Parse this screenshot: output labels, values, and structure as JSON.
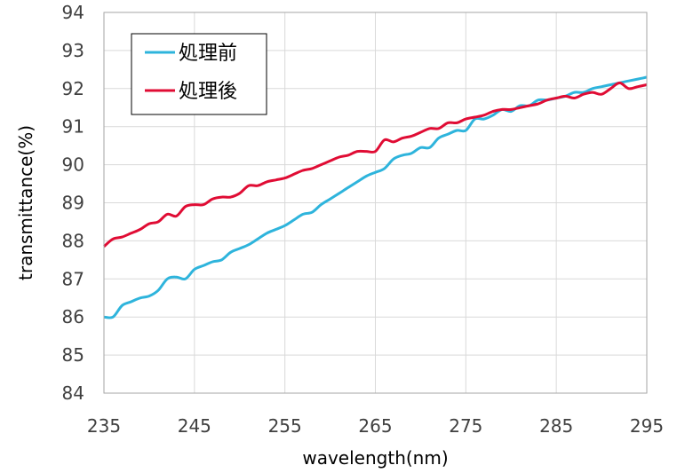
{
  "chart_data": {
    "type": "line",
    "xlabel": "wavelength(nm)",
    "ylabel": "transmittance(%)",
    "xlim": [
      235,
      295
    ],
    "ylim": [
      84,
      94
    ],
    "xticks": [
      235,
      245,
      255,
      265,
      275,
      285,
      295
    ],
    "yticks": [
      84,
      85,
      86,
      87,
      88,
      89,
      90,
      91,
      92,
      93,
      94
    ],
    "grid": true,
    "legend_position": "top-left",
    "series": [
      {
        "name": "処理前",
        "color": "#2EB4DC",
        "x": [
          235,
          236,
          237,
          238,
          239,
          240,
          241,
          242,
          243,
          244,
          245,
          246,
          247,
          248,
          249,
          250,
          251,
          252,
          253,
          254,
          255,
          256,
          257,
          258,
          259,
          260,
          261,
          262,
          263,
          264,
          265,
          266,
          267,
          268,
          269,
          270,
          271,
          272,
          273,
          274,
          275,
          276,
          277,
          278,
          279,
          280,
          281,
          282,
          283,
          284,
          285,
          286,
          287,
          288,
          289,
          290,
          291,
          292,
          293,
          294,
          295
        ],
        "values": [
          86.0,
          86.0,
          86.3,
          86.4,
          86.5,
          86.55,
          86.7,
          87.0,
          87.05,
          87.0,
          87.25,
          87.35,
          87.45,
          87.5,
          87.7,
          87.8,
          87.9,
          88.05,
          88.2,
          88.3,
          88.4,
          88.55,
          88.7,
          88.75,
          88.95,
          89.1,
          89.25,
          89.4,
          89.55,
          89.7,
          89.8,
          89.9,
          90.15,
          90.25,
          90.3,
          90.45,
          90.45,
          90.7,
          90.8,
          90.9,
          90.9,
          91.2,
          91.2,
          91.3,
          91.45,
          91.4,
          91.55,
          91.55,
          91.7,
          91.7,
          91.75,
          91.8,
          91.9,
          91.9,
          92.0,
          92.05,
          92.1,
          92.15,
          92.2,
          92.25,
          92.3
        ]
      },
      {
        "name": "処理後",
        "color": "#E00C34",
        "x": [
          235,
          236,
          237,
          238,
          239,
          240,
          241,
          242,
          243,
          244,
          245,
          246,
          247,
          248,
          249,
          250,
          251,
          252,
          253,
          254,
          255,
          256,
          257,
          258,
          259,
          260,
          261,
          262,
          263,
          264,
          265,
          266,
          267,
          268,
          269,
          270,
          271,
          272,
          273,
          274,
          275,
          276,
          277,
          278,
          279,
          280,
          281,
          282,
          283,
          284,
          285,
          286,
          287,
          288,
          289,
          290,
          291,
          292,
          293,
          294,
          295
        ],
        "values": [
          87.85,
          88.05,
          88.1,
          88.2,
          88.3,
          88.45,
          88.5,
          88.7,
          88.65,
          88.9,
          88.95,
          88.95,
          89.1,
          89.15,
          89.15,
          89.25,
          89.45,
          89.45,
          89.55,
          89.6,
          89.65,
          89.75,
          89.85,
          89.9,
          90.0,
          90.1,
          90.2,
          90.25,
          90.35,
          90.35,
          90.35,
          90.65,
          90.6,
          90.7,
          90.75,
          90.85,
          90.95,
          90.95,
          91.1,
          91.1,
          91.2,
          91.25,
          91.3,
          91.4,
          91.45,
          91.45,
          91.5,
          91.55,
          91.6,
          91.7,
          91.75,
          91.8,
          91.75,
          91.85,
          91.9,
          91.85,
          92.0,
          92.15,
          92.0,
          92.05,
          92.1
        ]
      }
    ]
  }
}
